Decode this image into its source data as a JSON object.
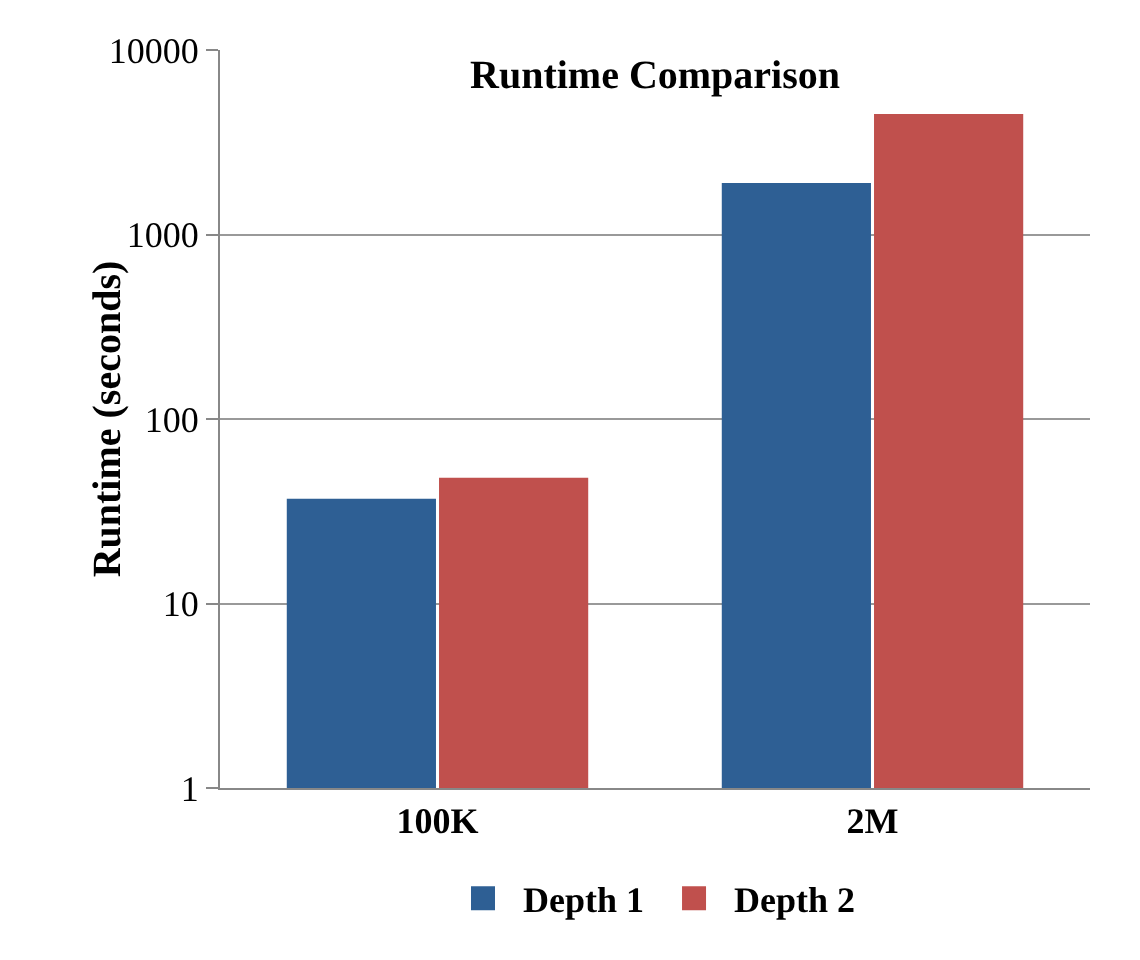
{
  "chart_data": {
    "type": "bar",
    "title": "Runtime Comparison",
    "ylabel": "Runtime (seconds)",
    "categories": [
      "100K",
      "2M"
    ],
    "series": [
      {
        "name": "Depth 1",
        "color": "#2e5f94",
        "values": [
          37,
          1900
        ]
      },
      {
        "name": "Depth 2",
        "color": "#c0504d",
        "values": [
          48,
          4500
        ]
      }
    ],
    "log": "y",
    "ylim": [
      1,
      10000
    ],
    "yticks": [
      1,
      10,
      100,
      1000,
      10000
    ],
    "grid": "y",
    "legend": "bottom"
  }
}
